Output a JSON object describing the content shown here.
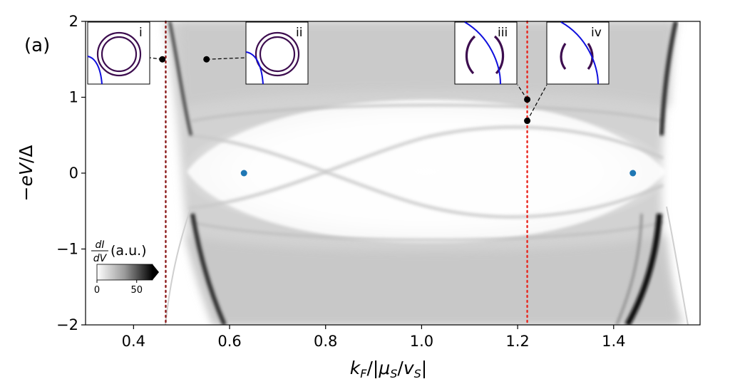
{
  "chart_data": {
    "type": "heatmap",
    "panel_label": "(a)",
    "xlabel": "k_F/|μ_S/v_S|",
    "ylabel": "−eV/Δ",
    "xlim": [
      0.3,
      1.58
    ],
    "ylim": [
      -2,
      2
    ],
    "xticks": [
      0.4,
      0.6,
      0.8,
      1.0,
      1.2,
      1.4
    ],
    "xtick_labels": [
      "0.4",
      "0.6",
      "0.8",
      "1.0",
      "1.2",
      "1.4"
    ],
    "yticks": [
      -2,
      -1,
      0,
      1,
      2
    ],
    "ytick_labels": [
      "−2",
      "−1",
      "0",
      "1",
      "2"
    ],
    "colormap": "Greys",
    "colorbar": {
      "label_num": "dI",
      "label_den": "dV",
      "label_unit": "(a.u.)",
      "ticks": [
        0,
        50
      ],
      "tick_labels": [
        "0",
        "50"
      ],
      "range": [
        0,
        70
      ],
      "extend": "max"
    },
    "vlines": [
      {
        "x": 0.467,
        "color": "#8b1a1a",
        "style": "dotted"
      },
      {
        "x": 1.22,
        "color": "#e8251d",
        "style": "dotted"
      }
    ],
    "blue_points": [
      {
        "x": 0.63,
        "y": 0.0
      },
      {
        "x": 1.44,
        "y": 0.0
      }
    ],
    "black_points": [
      {
        "x": 0.46,
        "y": 1.5,
        "inset": "i"
      },
      {
        "x": 0.552,
        "y": 1.5,
        "inset": "ii"
      },
      {
        "x": 1.22,
        "y": 0.97,
        "inset": "iii"
      },
      {
        "x": 1.22,
        "y": 0.69,
        "inset": "iv"
      }
    ],
    "insets": [
      {
        "label": "i"
      },
      {
        "label": "ii"
      },
      {
        "label": "iii"
      },
      {
        "label": "iv"
      }
    ],
    "colors": {
      "blue_point": "#1f77b4",
      "inset_ring": "#3d0d4f",
      "inset_blue": "#1010dd"
    }
  }
}
